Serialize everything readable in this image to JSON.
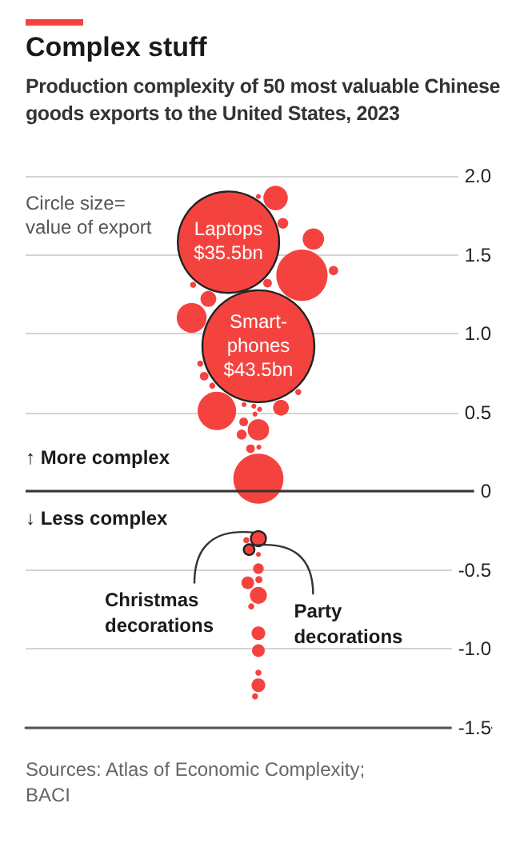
{
  "chart_data": {
    "type": "bubble",
    "title": "Complex stuff",
    "subtitle": "Production complexity of 50 most valuable Chinese goods exports to the United States, 2023",
    "categories": [
      null
    ],
    "series": [
      {
        "x": [
          null,
          null,
          null,
          null,
          null,
          null,
          null,
          null,
          null,
          null,
          null,
          null,
          null,
          null,
          null,
          null,
          null,
          null,
          null,
          null,
          null,
          null,
          null,
          null,
          null,
          null,
          null,
          null,
          null,
          null,
          null,
          null,
          null,
          null,
          null,
          null,
          null,
          null,
          null,
          null,
          null,
          null
        ],
        "value_labels": [
          "Laptops\n$35.5bn",
          "Smart-\nphones\n$43.5bn",
          null,
          null,
          null,
          null,
          null,
          null,
          null,
          null,
          null,
          null,
          null,
          null,
          null,
          null,
          null,
          null,
          null,
          null,
          null,
          null,
          null,
          null,
          null,
          null,
          null,
          null,
          "Christmas\ndecorations",
          "Party\ndecorations",
          null,
          null,
          null,
          null,
          null,
          null,
          null,
          null,
          null,
          null,
          null,
          null
        ],
        "values": [
          1.58,
          0.92,
          1.86,
          1.87,
          1.7,
          1.6,
          1.37,
          1.4,
          1.32,
          1.31,
          1.22,
          1.1,
          0.81,
          0.73,
          0.67,
          0.63,
          0.51,
          0.53,
          0.44,
          0.39,
          0.36,
          0.27,
          0.28,
          0.08,
          0.54,
          0.55,
          0.52,
          0.49,
          -0.3,
          -0.37,
          -0.31,
          -0.4,
          -0.49,
          -0.58,
          -0.56,
          -0.66,
          -0.73,
          -0.9,
          -1.01,
          -1.15,
          -1.23,
          -1.3
        ],
        "sizes": [
          0.82,
          1,
          0.048,
          0.002,
          0.009,
          0.037,
          0.21,
          0.007,
          0.006,
          0.003,
          0.02,
          0.071,
          0.003,
          0.006,
          0.003,
          0.003,
          0.118,
          0.02,
          0.006,
          0.037,
          0.008,
          0.006,
          0.002,
          0.2,
          0.002,
          0.002,
          0.002,
          0.002,
          0.018,
          0.009,
          0.003,
          0.002,
          0.009,
          0.013,
          0.004,
          0.023,
          0.003,
          0.015,
          0.013,
          0.003,
          0.015,
          0.003
        ],
        "color": "#f4433f"
      }
    ],
    "ylim": [
      -1.5,
      2.0
    ],
    "yticks": [
      {
        "value": 2,
        "label": "2.0"
      },
      {
        "value": 1.5,
        "label": "1.5"
      },
      {
        "value": 1,
        "label": "1.0"
      },
      {
        "value": 0.5,
        "label": "0.5"
      },
      0,
      {
        "value": -0.5,
        "label": "-0.5"
      },
      {
        "value": -1,
        "label": "-1.0"
      },
      {
        "value": -1.5,
        "label": "-1.5"
      }
    ],
    "tick_labels": "y",
    "grid": "y",
    "ref_lines": [
      {
        "axis": "y",
        "value": 0,
        "color": "#333333"
      }
    ],
    "annotations": [
      "Circle size=\nvalue of export",
      "↑ More complex",
      "↓ Less complex",
      "Sources: Atlas of Economic Complexity;\nBACI"
    ]
  }
}
